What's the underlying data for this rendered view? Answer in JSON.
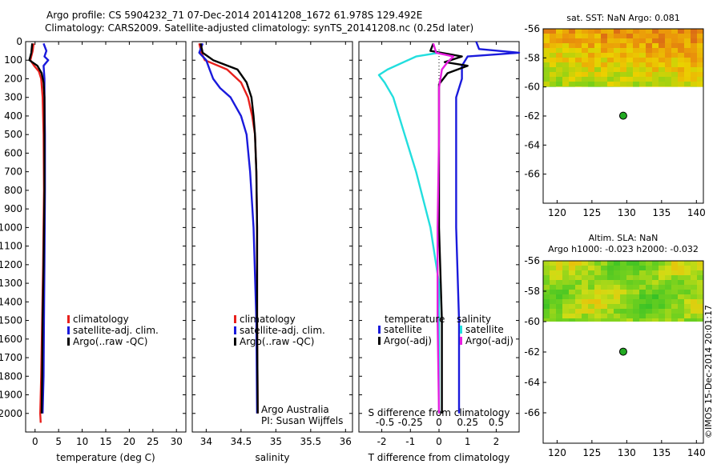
{
  "header": {
    "line1": "Argo profile: CS 5904232_71 07-Dec-2014 20141208_1672 61.978S 129.492E",
    "line2": "Climatology: CARS2009. Satellite-adjusted climatology: synTS_20141208.nc (0.25d later)"
  },
  "credit": "©IMOS 15-Dec-2014 20:01:17",
  "colors": {
    "climatology": "#e8201c",
    "satellite": "#1a1adc",
    "argo": "#000000",
    "sst_satellite": "#22dede",
    "sal_argo": "#e81ee0"
  },
  "chart_data": [
    {
      "id": "temperature_panel",
      "type": "line",
      "xlabel": "temperature (deg C)",
      "ylabel": "",
      "xlim": [
        -2,
        32
      ],
      "ylim": [
        2100,
        0
      ],
      "xticks": [
        0,
        5,
        10,
        15,
        20,
        25,
        30
      ],
      "yticks": [
        0,
        100,
        200,
        300,
        400,
        500,
        600,
        700,
        800,
        900,
        1000,
        1100,
        1200,
        1300,
        1400,
        1500,
        1600,
        1700,
        1800,
        1900,
        2000
      ],
      "legend": [
        "climatology",
        "satellite-adj. clim.",
        "Argo(..raw -QC)"
      ],
      "series": [
        {
          "name": "climatology",
          "points": [
            [
              -0.3,
              10
            ],
            [
              -0.5,
              50
            ],
            [
              -1.0,
              100
            ],
            [
              -0.2,
              130
            ],
            [
              0.8,
              160
            ],
            [
              1.3,
              200
            ],
            [
              1.6,
              300
            ],
            [
              1.8,
              500
            ],
            [
              1.9,
              800
            ],
            [
              1.7,
              1200
            ],
            [
              1.5,
              1500
            ],
            [
              1.3,
              1800
            ],
            [
              1.1,
              2000
            ],
            [
              1.2,
              2050
            ]
          ]
        },
        {
          "name": "satellite-adj. clim.",
          "points": [
            [
              1.8,
              10
            ],
            [
              2.4,
              50
            ],
            [
              2.0,
              80
            ],
            [
              2.8,
              100
            ],
            [
              1.8,
              130
            ],
            [
              2.0,
              200
            ],
            [
              2.0,
              300
            ],
            [
              2.1,
              500
            ],
            [
              2.1,
              800
            ],
            [
              2.0,
              1200
            ],
            [
              1.9,
              1500
            ],
            [
              1.8,
              1800
            ],
            [
              1.6,
              2000
            ]
          ]
        },
        {
          "name": "Argo(..raw -QC)",
          "points": [
            [
              -0.6,
              10
            ],
            [
              -0.8,
              60
            ],
            [
              -1.2,
              100
            ],
            [
              0.5,
              130
            ],
            [
              1.4,
              170
            ],
            [
              1.8,
              220
            ],
            [
              2.0,
              300
            ],
            [
              2.0,
              500
            ],
            [
              2.0,
              800
            ],
            [
              1.8,
              1200
            ],
            [
              1.6,
              1500
            ],
            [
              1.5,
              1800
            ],
            [
              1.4,
              2000
            ]
          ]
        }
      ]
    },
    {
      "id": "salinity_panel",
      "type": "line",
      "xlabel": "salinity",
      "xlim": [
        33.8,
        36.1
      ],
      "ylim": [
        2100,
        0
      ],
      "xticks": [
        34,
        34.5,
        35,
        35.5,
        36
      ],
      "legend": [
        "climatology",
        "satellite-adj. clim.",
        "Argo(..raw -QC)"
      ],
      "note_line1": "Argo Australia",
      "note_line2": "PI: Susan Wijffels",
      "series": [
        {
          "name": "climatology",
          "points": [
            [
              33.9,
              10
            ],
            [
              33.93,
              60
            ],
            [
              33.98,
              100
            ],
            [
              34.3,
              150
            ],
            [
              34.5,
              220
            ],
            [
              34.6,
              300
            ],
            [
              34.66,
              400
            ],
            [
              34.7,
              500
            ],
            [
              34.72,
              700
            ],
            [
              34.73,
              1000
            ],
            [
              34.73,
              1500
            ],
            [
              34.74,
              2000
            ]
          ]
        },
        {
          "name": "satellite-adj. clim.",
          "points": [
            [
              33.95,
              10
            ],
            [
              33.9,
              60
            ],
            [
              34.0,
              100
            ],
            [
              34.05,
              150
            ],
            [
              34.1,
              200
            ],
            [
              34.2,
              250
            ],
            [
              34.35,
              300
            ],
            [
              34.5,
              400
            ],
            [
              34.58,
              500
            ],
            [
              34.63,
              700
            ],
            [
              34.68,
              1000
            ],
            [
              34.72,
              1500
            ],
            [
              34.73,
              2000
            ]
          ]
        },
        {
          "name": "Argo(..raw -QC)",
          "points": [
            [
              33.92,
              10
            ],
            [
              33.95,
              60
            ],
            [
              34.1,
              100
            ],
            [
              34.45,
              150
            ],
            [
              34.58,
              220
            ],
            [
              34.65,
              300
            ],
            [
              34.68,
              400
            ],
            [
              34.7,
              500
            ],
            [
              34.72,
              700
            ],
            [
              34.73,
              1000
            ],
            [
              34.73,
              1500
            ],
            [
              34.74,
              2000
            ]
          ]
        }
      ]
    },
    {
      "id": "difference_panel",
      "type": "line",
      "xlabel": "T difference from climatology",
      "top_label": "S difference from climatology",
      "xlim": [
        -2.8,
        2.8
      ],
      "ylim": [
        2100,
        0
      ],
      "xticks": [
        -2,
        -1,
        0,
        1,
        2
      ],
      "top_ticks": [
        "-0.5",
        "-0.25",
        "0",
        "0.25",
        "0.5"
      ],
      "top_tick_values": [
        -2,
        -1,
        0,
        1,
        2
      ],
      "legend_temperature_title": "temperature",
      "legend_salinity_title": "salinity",
      "legend_t_satellite": "satellite",
      "legend_t_argo": "Argo(-adj)",
      "legend_s_satellite": "satellite",
      "legend_s_argo": "Argo(-adj)",
      "series": [
        {
          "name": "T satellite",
          "points": [
            [
              1.3,
              0
            ],
            [
              1.4,
              40
            ],
            [
              2.8,
              60
            ],
            [
              1.0,
              80
            ],
            [
              0.8,
              130
            ],
            [
              0.8,
              200
            ],
            [
              0.6,
              300
            ],
            [
              0.6,
              600
            ],
            [
              0.6,
              1000
            ],
            [
              0.7,
              1500
            ],
            [
              0.7,
              2000
            ]
          ]
        },
        {
          "name": "T Argo(-adj)",
          "points": [
            [
              -0.2,
              10
            ],
            [
              -0.3,
              50
            ],
            [
              0.8,
              80
            ],
            [
              0.2,
              110
            ],
            [
              1.0,
              130
            ],
            [
              0.3,
              170
            ],
            [
              0.0,
              230
            ],
            [
              0.0,
              500
            ],
            [
              0.0,
              1000
            ],
            [
              0.1,
              1500
            ],
            [
              0.1,
              2000
            ]
          ]
        },
        {
          "name": "S satellite",
          "points": [
            [
              0.0,
              60
            ],
            [
              -0.8,
              80
            ],
            [
              -1.8,
              150
            ],
            [
              -2.1,
              180
            ],
            [
              -1.9,
              220
            ],
            [
              -1.6,
              300
            ],
            [
              -1.2,
              500
            ],
            [
              -0.8,
              700
            ],
            [
              -0.3,
              1000
            ],
            [
              0.0,
              1300
            ],
            [
              0.0,
              2000
            ]
          ]
        },
        {
          "name": "S Argo(-adj)",
          "points": [
            [
              -0.2,
              10
            ],
            [
              -0.1,
              60
            ],
            [
              0.5,
              80
            ],
            [
              0.3,
              110
            ],
            [
              0.1,
              150
            ],
            [
              0.0,
              250
            ],
            [
              0.0,
              500
            ],
            [
              -0.05,
              1000
            ],
            [
              -0.05,
              1500
            ],
            [
              0.0,
              2000
            ]
          ]
        }
      ]
    },
    {
      "id": "sst_map",
      "type": "heatmap",
      "title": "sat. SST: NaN Argo: 0.081",
      "xlim": [
        118,
        141
      ],
      "ylim": [
        -68,
        -56
      ],
      "xticks": [
        120,
        125,
        130,
        135,
        140
      ],
      "yticks": [
        -56,
        -58,
        -60,
        -62,
        -64,
        -66
      ],
      "data_extent_lat": [
        -60,
        -56
      ],
      "marker": {
        "lon": 129.492,
        "lat": -61.978
      }
    },
    {
      "id": "sla_map",
      "type": "heatmap",
      "title_line1": "Altim. SLA: NaN",
      "title_line2": "Argo h1000: -0.023 h2000: -0.032",
      "xlim": [
        118,
        141
      ],
      "ylim": [
        -68,
        -56
      ],
      "xticks": [
        120,
        125,
        130,
        135,
        140
      ],
      "yticks": [
        -56,
        -58,
        -60,
        -62,
        -64,
        -66
      ],
      "data_extent_lat": [
        -60,
        -56
      ],
      "marker": {
        "lon": 129.492,
        "lat": -61.978
      }
    }
  ]
}
